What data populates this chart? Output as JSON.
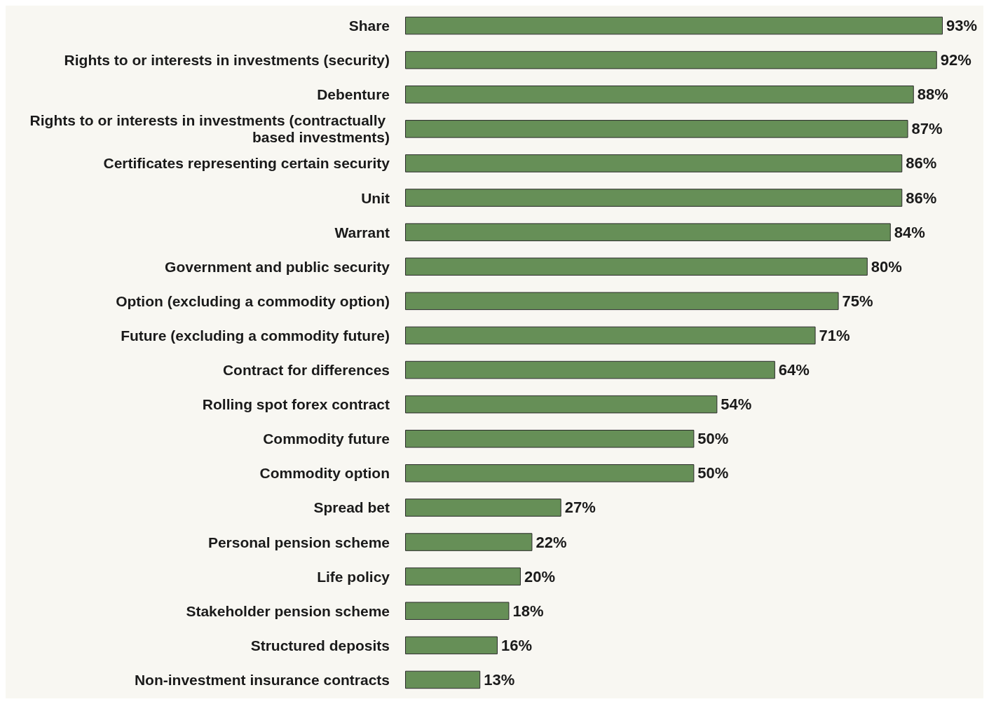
{
  "chart_data": {
    "type": "bar",
    "orientation": "horizontal",
    "categories": [
      "Share",
      "Rights to or interests in investments (security)",
      "Debenture",
      "Rights to or interests in investments (contractually based investments)",
      "Certificates representing certain security",
      "Unit",
      "Warrant",
      "Government and public security",
      "Option (excluding a commodity option)",
      "Future (excluding a commodity future)",
      "Contract for differences",
      "Rolling spot forex contract",
      "Commodity future",
      "Commodity option",
      "Spread bet",
      "Personal pension scheme",
      "Life policy",
      "Stakeholder pension scheme",
      "Structured deposits",
      "Non-investment insurance contracts"
    ],
    "values": [
      93,
      92,
      88,
      87,
      86,
      86,
      84,
      80,
      75,
      71,
      64,
      54,
      50,
      50,
      27,
      22,
      20,
      18,
      16,
      13
    ],
    "value_labels": [
      "93%",
      "92%",
      "88%",
      "87%",
      "86%",
      "86%",
      "84%",
      "80%",
      "75%",
      "71%",
      "64%",
      "54%",
      "50%",
      "50%",
      "27%",
      "22%",
      "20%",
      "18%",
      "16%",
      "13%"
    ],
    "color": "#668f57"
  }
}
